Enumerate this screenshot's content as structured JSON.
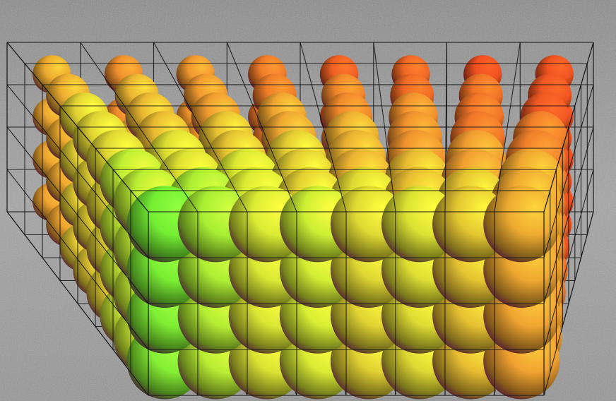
{
  "scene": {
    "description_name": "sphere-lattice-render",
    "floor_color": "#9a9a9a",
    "floor_shade_color": "#7c7c7c",
    "grid_color": "#111111",
    "color_stops": [
      "#44ee33",
      "#d8ee33",
      "#f0a030",
      "#f05020"
    ],
    "grid": {
      "cols": 8,
      "rows": 4,
      "layers": 8
    }
  }
}
